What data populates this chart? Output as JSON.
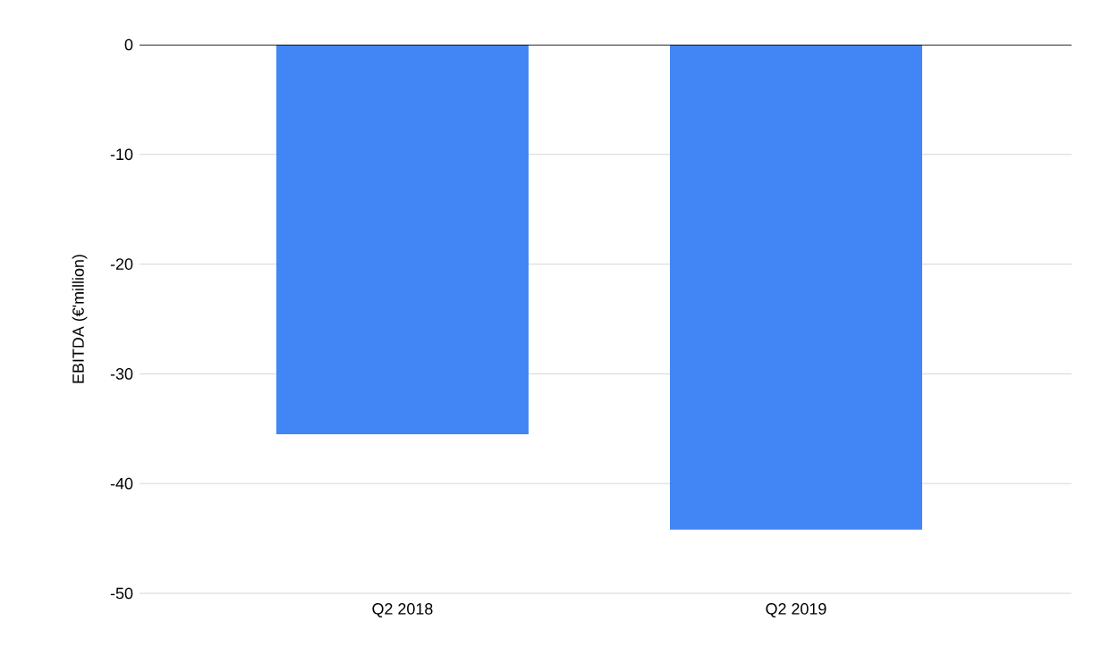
{
  "chart_data": {
    "type": "bar",
    "ylabel": "EBITDA (€'million)",
    "categories": [
      "Q2 2018",
      "Q2 2019"
    ],
    "values": [
      -35.5,
      -44.2
    ],
    "color": "#4285f4",
    "ylim": [
      -50,
      0
    ],
    "yticks": [
      0,
      -10,
      -20,
      -30,
      -40,
      -50
    ],
    "grid": "y"
  }
}
